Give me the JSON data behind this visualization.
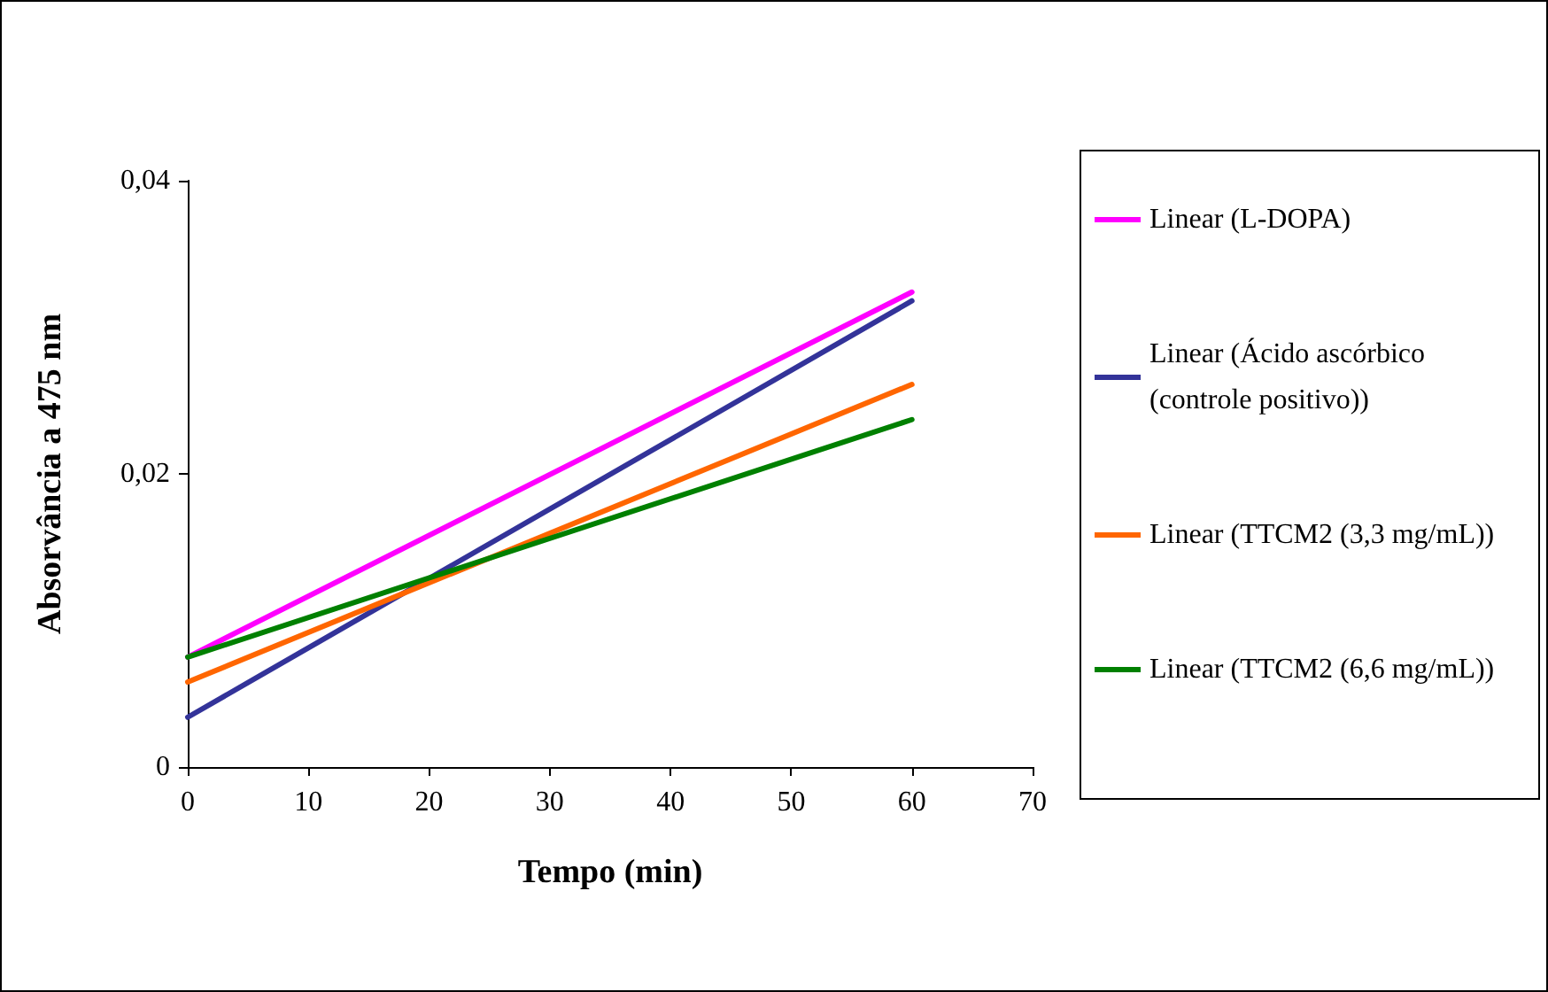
{
  "chart_data": {
    "type": "line",
    "xlabel": "Tempo (min)",
    "ylabel": "Absorvância a 475 nm",
    "x": [
      0,
      60
    ],
    "series": [
      {
        "name": "Linear (L-DOPA)",
        "color": "#ff00ff",
        "values": [
          0.0075,
          0.0324
        ]
      },
      {
        "name": "Linear (Ácido ascórbico (controle positivo))",
        "color": "#333399",
        "values": [
          0.0034,
          0.0318
        ]
      },
      {
        "name": "Linear (TTCM2 (3,3 mg/mL))",
        "color": "#ff6600",
        "values": [
          0.0058,
          0.0261
        ]
      },
      {
        "name": "Linear (TTCM2 (6,6 mg/mL))",
        "color": "#008000",
        "values": [
          0.0075,
          0.0237
        ]
      }
    ],
    "xlim": [
      0,
      70
    ],
    "xticks": [
      0,
      10,
      20,
      30,
      40,
      50,
      60,
      70
    ],
    "ylim": [
      0,
      0.04
    ],
    "yticks": [
      {
        "value": 0,
        "label": "0"
      },
      {
        "value": 0.02,
        "label": "0,02"
      },
      {
        "value": 0.04,
        "label": "0,04"
      }
    ],
    "grid": false,
    "legend": "right",
    "marker": "none",
    "line_style": "solid"
  }
}
